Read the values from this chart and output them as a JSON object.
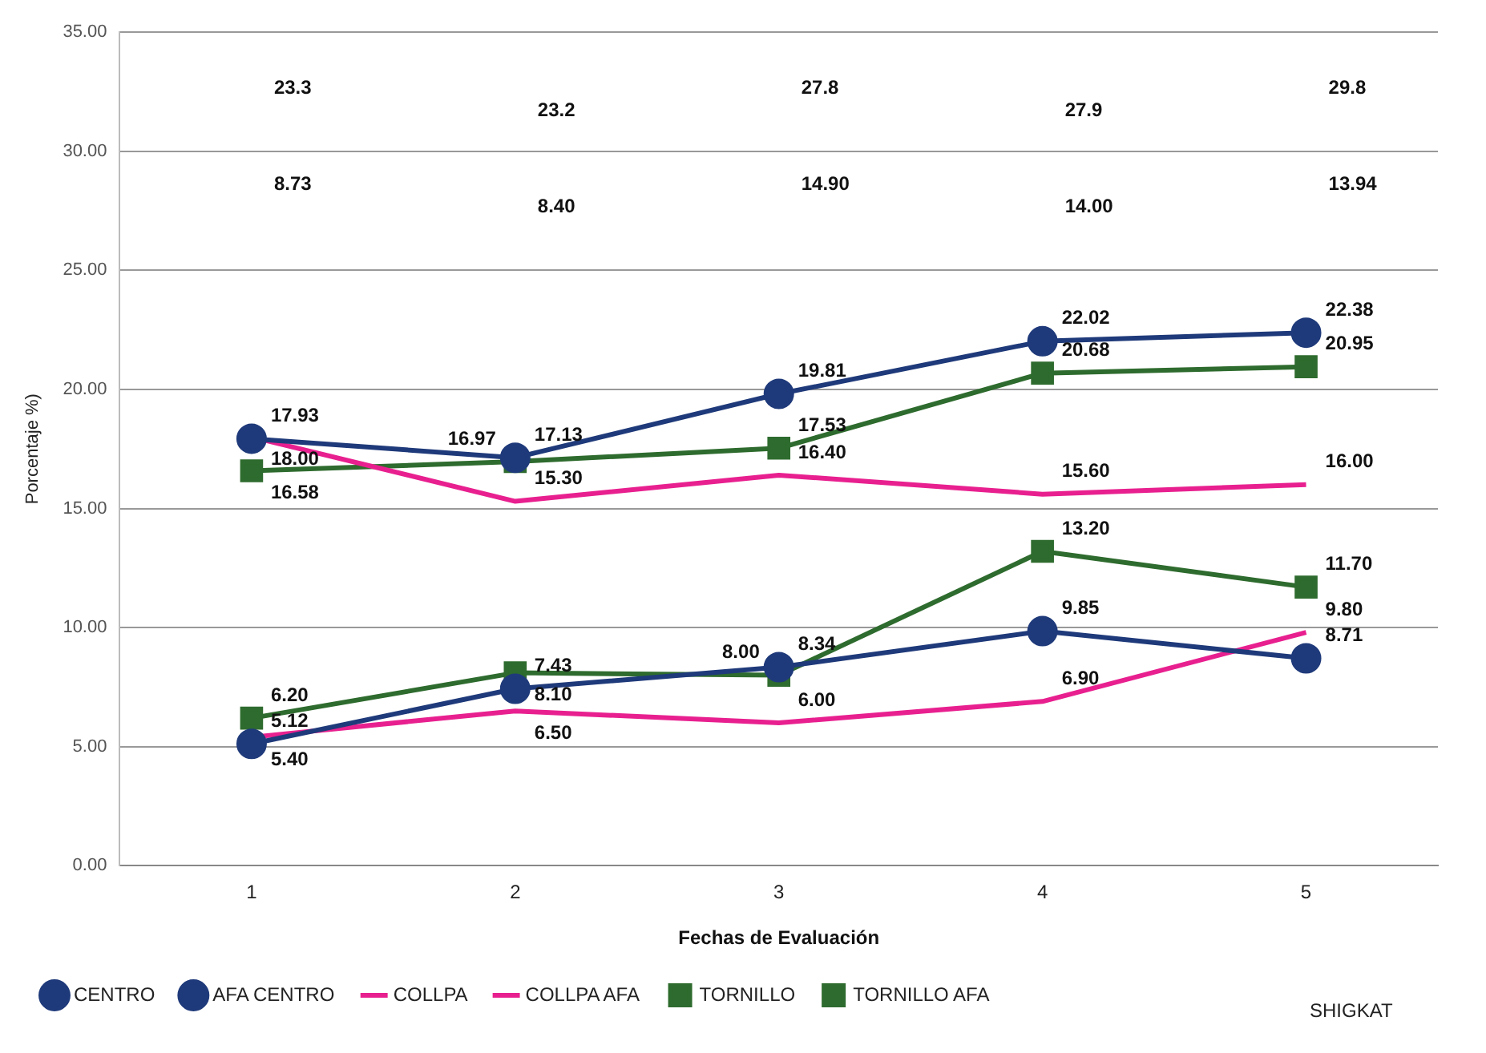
{
  "chart_data": {
    "type": "line",
    "xlabel": "Fechas de Evaluación",
    "ylabel": "Porcentaje %)",
    "categories": [
      "1",
      "2",
      "3",
      "4",
      "5"
    ],
    "series": [
      {
        "name": "CENTRO",
        "color": "#1f3a7a",
        "marker": "circle",
        "values": [
          17.93,
          17.13,
          19.81,
          22.02,
          22.38
        ],
        "value_labels": [
          "17.93",
          "17.13",
          "19.81",
          "22.02",
          "22.38"
        ]
      },
      {
        "name": "AFA CENTRO",
        "color": "#1f3a7a",
        "marker": "circle",
        "values": [
          5.12,
          7.43,
          8.34,
          9.85,
          8.71
        ],
        "value_labels": [
          "5.12",
          "7.43",
          "8.34",
          "9.85",
          "8.71"
        ]
      },
      {
        "name": "COLLPA",
        "color": "#e8208f",
        "marker": "none",
        "values": [
          18.0,
          15.3,
          16.4,
          15.6,
          16.0
        ],
        "value_labels": [
          "18.00",
          "15.30",
          "16.40",
          "15.60",
          "16.00"
        ]
      },
      {
        "name": "COLLPA AFA",
        "color": "#e8208f",
        "marker": "none",
        "values": [
          5.4,
          6.5,
          6.0,
          6.9,
          9.8
        ],
        "value_labels": [
          "5.40",
          "6.50",
          "6.00",
          "6.90",
          "9.80"
        ]
      },
      {
        "name": "TORNILLO",
        "color": "#2e6b2e",
        "marker": "square",
        "values": [
          16.58,
          16.97,
          17.53,
          20.68,
          20.95
        ],
        "value_labels": [
          "16.58",
          "16.97",
          "17.53",
          "20.68",
          "20.95"
        ]
      },
      {
        "name": "TORNILLO AFA",
        "color": "#2e6b2e",
        "marker": "square",
        "values": [
          6.2,
          8.1,
          8.0,
          13.2,
          11.7
        ],
        "value_labels": [
          "6.20",
          "8.10",
          "8.00",
          "13.20",
          "11.70"
        ]
      }
    ],
    "ylim": [
      0,
      35
    ],
    "yticks": [
      {
        "value": 0,
        "label": "0.00"
      },
      {
        "value": 5,
        "label": "5.00"
      },
      {
        "value": 10,
        "label": "10.00"
      },
      {
        "value": 15,
        "label": "15.00"
      },
      {
        "value": 20,
        "label": "20.00"
      },
      {
        "value": 25,
        "label": "25.00"
      },
      {
        "value": 30,
        "label": "30.00"
      },
      {
        "value": 35,
        "label": "35.00"
      }
    ],
    "grid": "y",
    "line_style": "solid",
    "legend": "bottom",
    "annotations": [
      "23.3",
      "23.2",
      "27.8",
      "27.9",
      "29.8",
      "8.73",
      "8.40",
      "14.90",
      "14.00",
      "13.94",
      "SHIGKAT"
    ]
  }
}
